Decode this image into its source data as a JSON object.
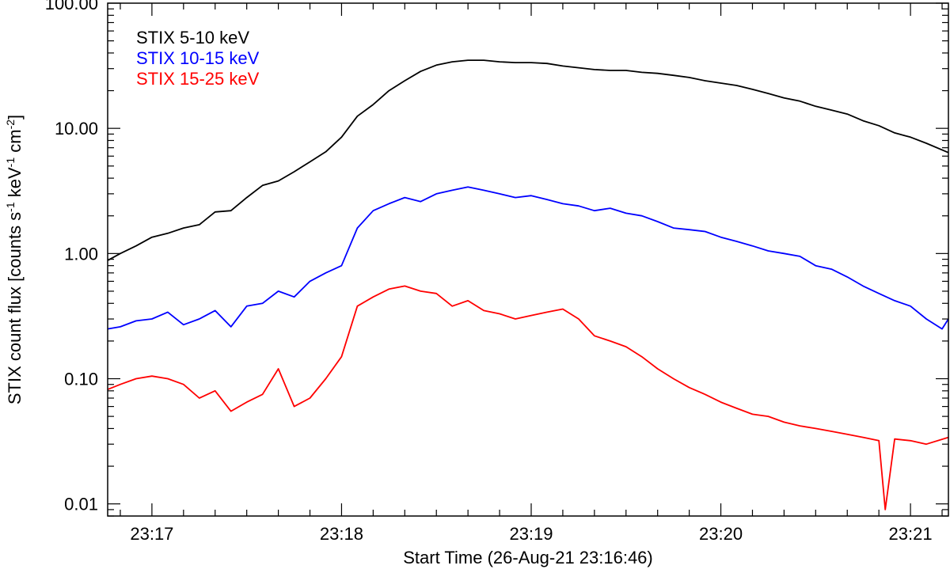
{
  "chart_data": {
    "type": "line",
    "xlabel": "Start Time (26-Aug-21 23:16:46)",
    "ylabel": {
      "parts": [
        "STIX count flux [counts s",
        "-1",
        " keV",
        "-1",
        " cm",
        "-2",
        "]"
      ]
    },
    "y_scale": "log",
    "ylim": [
      0.008,
      100
    ],
    "xlim": [
      "23:16:46",
      "23:21:12"
    ],
    "y_ticks": [
      {
        "value": 0.01,
        "label": "0.01"
      },
      {
        "value": 0.1,
        "label": "0.10"
      },
      {
        "value": 1,
        "label": "1.00"
      },
      {
        "value": 10,
        "label": "10.00"
      },
      {
        "value": 100,
        "label": "100.00"
      }
    ],
    "x_ticks": [
      {
        "value": "23:17:00",
        "label": "23:17"
      },
      {
        "value": "23:18:00",
        "label": "23:18"
      },
      {
        "value": "23:19:00",
        "label": "23:19"
      },
      {
        "value": "23:20:00",
        "label": "23:20"
      },
      {
        "value": "23:21:00",
        "label": "23:21"
      }
    ],
    "legend_position": "top-left",
    "series": [
      {
        "name": "STIX 5-10 keV",
        "color": "#000000",
        "points": [
          [
            "23:16:46",
            0.88
          ],
          [
            "23:16:50",
            1.0
          ],
          [
            "23:16:55",
            1.15
          ],
          [
            "23:17:00",
            1.35
          ],
          [
            "23:17:05",
            1.45
          ],
          [
            "23:17:10",
            1.6
          ],
          [
            "23:17:15",
            1.7
          ],
          [
            "23:17:20",
            2.15
          ],
          [
            "23:17:25",
            2.2
          ],
          [
            "23:17:30",
            2.8
          ],
          [
            "23:17:35",
            3.5
          ],
          [
            "23:17:40",
            3.8
          ],
          [
            "23:17:45",
            4.5
          ],
          [
            "23:17:50",
            5.4
          ],
          [
            "23:17:55",
            6.5
          ],
          [
            "23:18:00",
            8.5
          ],
          [
            "23:18:05",
            12.5
          ],
          [
            "23:18:10",
            15.5
          ],
          [
            "23:18:15",
            20.0
          ],
          [
            "23:18:20",
            24.0
          ],
          [
            "23:18:25",
            28.5
          ],
          [
            "23:18:30",
            32.0
          ],
          [
            "23:18:35",
            34.0
          ],
          [
            "23:18:40",
            35.0
          ],
          [
            "23:18:45",
            35.0
          ],
          [
            "23:18:50",
            34.0
          ],
          [
            "23:18:55",
            33.5
          ],
          [
            "23:19:00",
            33.5
          ],
          [
            "23:19:05",
            33.0
          ],
          [
            "23:19:10",
            31.5
          ],
          [
            "23:19:15",
            30.5
          ],
          [
            "23:19:20",
            29.5
          ],
          [
            "23:19:25",
            29.0
          ],
          [
            "23:19:30",
            29.0
          ],
          [
            "23:19:35",
            28.0
          ],
          [
            "23:19:40",
            27.5
          ],
          [
            "23:19:45",
            26.5
          ],
          [
            "23:19:50",
            25.5
          ],
          [
            "23:19:55",
            24.0
          ],
          [
            "23:20:00",
            23.0
          ],
          [
            "23:20:05",
            22.0
          ],
          [
            "23:20:10",
            20.5
          ],
          [
            "23:20:15",
            19.0
          ],
          [
            "23:20:20",
            17.5
          ],
          [
            "23:20:25",
            16.5
          ],
          [
            "23:20:30",
            15.0
          ],
          [
            "23:20:35",
            14.0
          ],
          [
            "23:20:40",
            13.0
          ],
          [
            "23:20:45",
            11.5
          ],
          [
            "23:20:50",
            10.5
          ],
          [
            "23:20:55",
            9.2
          ],
          [
            "23:21:00",
            8.5
          ],
          [
            "23:21:05",
            7.6
          ],
          [
            "23:21:12",
            6.4
          ]
        ]
      },
      {
        "name": "STIX 10-15 keV",
        "color": "#0000ff",
        "points": [
          [
            "23:16:46",
            0.25
          ],
          [
            "23:16:50",
            0.26
          ],
          [
            "23:16:55",
            0.29
          ],
          [
            "23:17:00",
            0.3
          ],
          [
            "23:17:05",
            0.34
          ],
          [
            "23:17:10",
            0.27
          ],
          [
            "23:17:15",
            0.3
          ],
          [
            "23:17:20",
            0.35
          ],
          [
            "23:17:25",
            0.26
          ],
          [
            "23:17:30",
            0.38
          ],
          [
            "23:17:35",
            0.4
          ],
          [
            "23:17:40",
            0.5
          ],
          [
            "23:17:45",
            0.45
          ],
          [
            "23:17:50",
            0.6
          ],
          [
            "23:17:55",
            0.7
          ],
          [
            "23:18:00",
            0.8
          ],
          [
            "23:18:05",
            1.6
          ],
          [
            "23:18:10",
            2.2
          ],
          [
            "23:18:15",
            2.5
          ],
          [
            "23:18:20",
            2.8
          ],
          [
            "23:18:25",
            2.6
          ],
          [
            "23:18:30",
            3.0
          ],
          [
            "23:18:35",
            3.2
          ],
          [
            "23:18:40",
            3.4
          ],
          [
            "23:18:45",
            3.2
          ],
          [
            "23:18:50",
            3.0
          ],
          [
            "23:18:55",
            2.8
          ],
          [
            "23:19:00",
            2.9
          ],
          [
            "23:19:05",
            2.7
          ],
          [
            "23:19:10",
            2.5
          ],
          [
            "23:19:15",
            2.4
          ],
          [
            "23:19:20",
            2.2
          ],
          [
            "23:19:25",
            2.3
          ],
          [
            "23:19:30",
            2.1
          ],
          [
            "23:19:35",
            2.0
          ],
          [
            "23:19:40",
            1.8
          ],
          [
            "23:19:45",
            1.6
          ],
          [
            "23:19:50",
            1.55
          ],
          [
            "23:19:55",
            1.5
          ],
          [
            "23:20:00",
            1.35
          ],
          [
            "23:20:05",
            1.25
          ],
          [
            "23:20:10",
            1.15
          ],
          [
            "23:20:15",
            1.05
          ],
          [
            "23:20:20",
            1.0
          ],
          [
            "23:20:25",
            0.95
          ],
          [
            "23:20:30",
            0.8
          ],
          [
            "23:20:35",
            0.75
          ],
          [
            "23:20:40",
            0.65
          ],
          [
            "23:20:45",
            0.55
          ],
          [
            "23:20:50",
            0.48
          ],
          [
            "23:20:55",
            0.42
          ],
          [
            "23:21:00",
            0.38
          ],
          [
            "23:21:05",
            0.3
          ],
          [
            "23:21:10",
            0.25
          ],
          [
            "23:21:12",
            0.3
          ]
        ]
      },
      {
        "name": "STIX 15-25 keV",
        "color": "#ff0000",
        "points": [
          [
            "23:16:46",
            0.082
          ],
          [
            "23:16:50",
            0.09
          ],
          [
            "23:16:55",
            0.1
          ],
          [
            "23:17:00",
            0.105
          ],
          [
            "23:17:05",
            0.1
          ],
          [
            "23:17:10",
            0.09
          ],
          [
            "23:17:15",
            0.07
          ],
          [
            "23:17:20",
            0.08
          ],
          [
            "23:17:25",
            0.055
          ],
          [
            "23:17:30",
            0.065
          ],
          [
            "23:17:35",
            0.075
          ],
          [
            "23:17:40",
            0.12
          ],
          [
            "23:17:45",
            0.06
          ],
          [
            "23:17:50",
            0.07
          ],
          [
            "23:17:55",
            0.1
          ],
          [
            "23:18:00",
            0.15
          ],
          [
            "23:18:05",
            0.38
          ],
          [
            "23:18:10",
            0.45
          ],
          [
            "23:18:15",
            0.52
          ],
          [
            "23:18:20",
            0.55
          ],
          [
            "23:18:25",
            0.5
          ],
          [
            "23:18:30",
            0.48
          ],
          [
            "23:18:35",
            0.38
          ],
          [
            "23:18:40",
            0.42
          ],
          [
            "23:18:45",
            0.35
          ],
          [
            "23:18:50",
            0.33
          ],
          [
            "23:18:55",
            0.3
          ],
          [
            "23:19:00",
            0.32
          ],
          [
            "23:19:05",
            0.34
          ],
          [
            "23:19:10",
            0.36
          ],
          [
            "23:19:15",
            0.3
          ],
          [
            "23:19:20",
            0.22
          ],
          [
            "23:19:25",
            0.2
          ],
          [
            "23:19:30",
            0.18
          ],
          [
            "23:19:35",
            0.15
          ],
          [
            "23:19:40",
            0.12
          ],
          [
            "23:19:45",
            0.1
          ],
          [
            "23:19:50",
            0.085
          ],
          [
            "23:19:55",
            0.075
          ],
          [
            "23:20:00",
            0.065
          ],
          [
            "23:20:05",
            0.058
          ],
          [
            "23:20:10",
            0.052
          ],
          [
            "23:20:15",
            0.05
          ],
          [
            "23:20:20",
            0.045
          ],
          [
            "23:20:25",
            0.042
          ],
          [
            "23:20:30",
            0.04
          ],
          [
            "23:20:35",
            0.038
          ],
          [
            "23:20:40",
            0.036
          ],
          [
            "23:20:45",
            0.034
          ],
          [
            "23:20:50",
            0.032
          ],
          [
            "23:20:52",
            0.009
          ],
          [
            "23:20:55",
            0.033
          ],
          [
            "23:21:00",
            0.032
          ],
          [
            "23:21:05",
            0.03
          ],
          [
            "23:21:12",
            0.034
          ]
        ]
      }
    ]
  }
}
